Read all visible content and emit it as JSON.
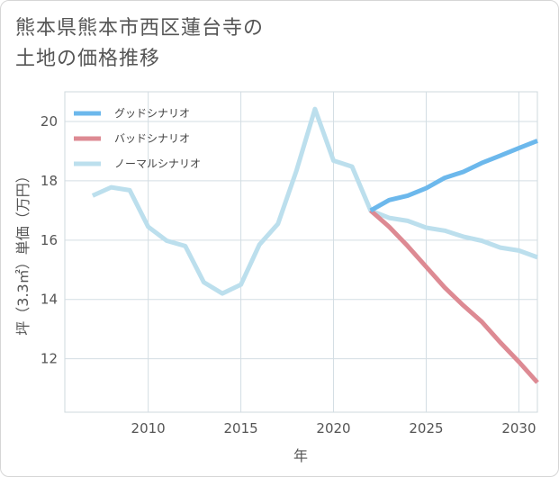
{
  "title": {
    "line1": "熊本県熊本市西区蓮台寺の",
    "line2": "土地の価格推移"
  },
  "chart_data": {
    "type": "line",
    "xlabel": "年",
    "ylabel": "坪（3.3㎡）単価（万円）",
    "xlim": [
      2005.5,
      2031
    ],
    "ylim": [
      10.2,
      21
    ],
    "xticks": [
      2010,
      2015,
      2020,
      2025,
      2030
    ],
    "yticks": [
      12,
      14,
      16,
      18,
      20
    ],
    "grid": true,
    "legend_position": "top-left",
    "series": [
      {
        "name": "グッドシナリオ",
        "color": "#6cb8ec",
        "x": [
          2022,
          2023,
          2024,
          2025,
          2026,
          2027,
          2028,
          2029,
          2030,
          2031
        ],
        "y": [
          17.0,
          17.35,
          17.5,
          17.75,
          18.1,
          18.3,
          18.6,
          18.85,
          19.1,
          19.35
        ]
      },
      {
        "name": "バッドシナリオ",
        "color": "#dd8a93",
        "x": [
          2022,
          2023,
          2024,
          2025,
          2026,
          2027,
          2028,
          2029,
          2030,
          2031
        ],
        "y": [
          17.0,
          16.45,
          15.8,
          15.1,
          14.4,
          13.8,
          13.25,
          12.55,
          11.9,
          11.2
        ]
      },
      {
        "name": "ノーマルシナリオ",
        "color": "#bcdfed",
        "x": [
          2007,
          2008,
          2009,
          2010,
          2011,
          2012,
          2013,
          2014,
          2015,
          2016,
          2017,
          2018,
          2019,
          2020,
          2021,
          2022,
          2023,
          2024,
          2025,
          2026,
          2027,
          2028,
          2029,
          2030,
          2031
        ],
        "y": [
          17.5,
          17.78,
          17.68,
          16.45,
          15.98,
          15.8,
          14.58,
          14.2,
          14.5,
          15.85,
          16.55,
          18.35,
          20.42,
          18.68,
          18.48,
          17.0,
          16.75,
          16.65,
          16.42,
          16.32,
          16.12,
          15.98,
          15.75,
          15.65,
          15.42
        ]
      }
    ]
  }
}
